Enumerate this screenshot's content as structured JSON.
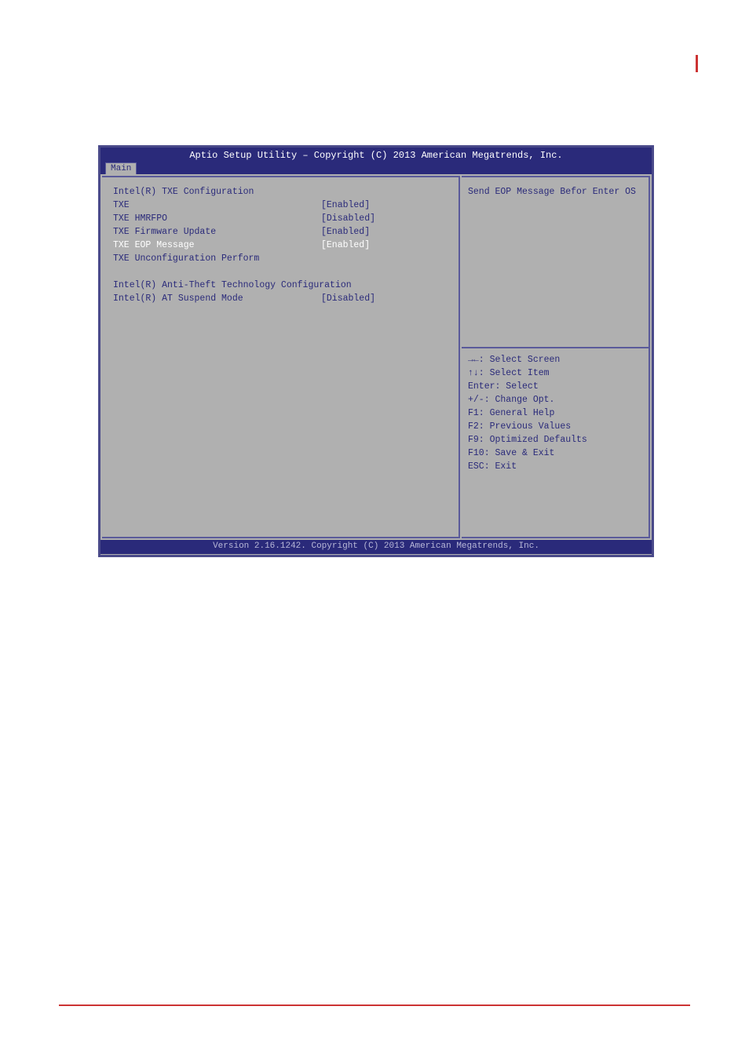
{
  "bios": {
    "header_title": "Aptio Setup Utility – Copyright (C) 2013 American Megatrends, Inc.",
    "active_tab": "Main",
    "footer_text": "Version 2.16.1242. Copyright (C) 2013 American Megatrends, Inc.",
    "section1_header": "Intel(R) TXE Configuration",
    "rows": [
      {
        "label": "TXE",
        "value": "[Enabled]",
        "highlighted": false
      },
      {
        "label": "TXE HMRFPO",
        "value": "[Disabled]",
        "highlighted": false
      },
      {
        "label": "TXE Firmware Update",
        "value": "[Enabled]",
        "highlighted": false
      },
      {
        "label": "TXE EOP Message",
        "value": "[Enabled]",
        "highlighted": true
      },
      {
        "label": "TXE Unconfiguration Perform",
        "value": "",
        "highlighted": false
      }
    ],
    "section2_header": "Intel(R) Anti-Theft Technology Configuration",
    "rows2": [
      {
        "label": "Intel(R) AT Suspend Mode",
        "value": "[Disabled]",
        "highlighted": false
      }
    ],
    "help_description": "Send EOP Message Befor Enter OS",
    "help_keys": [
      "→←: Select Screen",
      "↑↓: Select Item",
      "Enter: Select",
      "+/-: Change Opt.",
      "F1: General Help",
      "F2: Previous Values",
      "F9: Optimized Defaults",
      "F10: Save & Exit",
      "ESC: Exit"
    ]
  },
  "colors": {
    "bios_bg": "#b0b0b0",
    "header_bg": "#2a2a7a",
    "text_normal": "#2a2a7a",
    "text_highlight": "#ffffff",
    "border": "#5a5a9a",
    "accent": "#cc3333"
  }
}
